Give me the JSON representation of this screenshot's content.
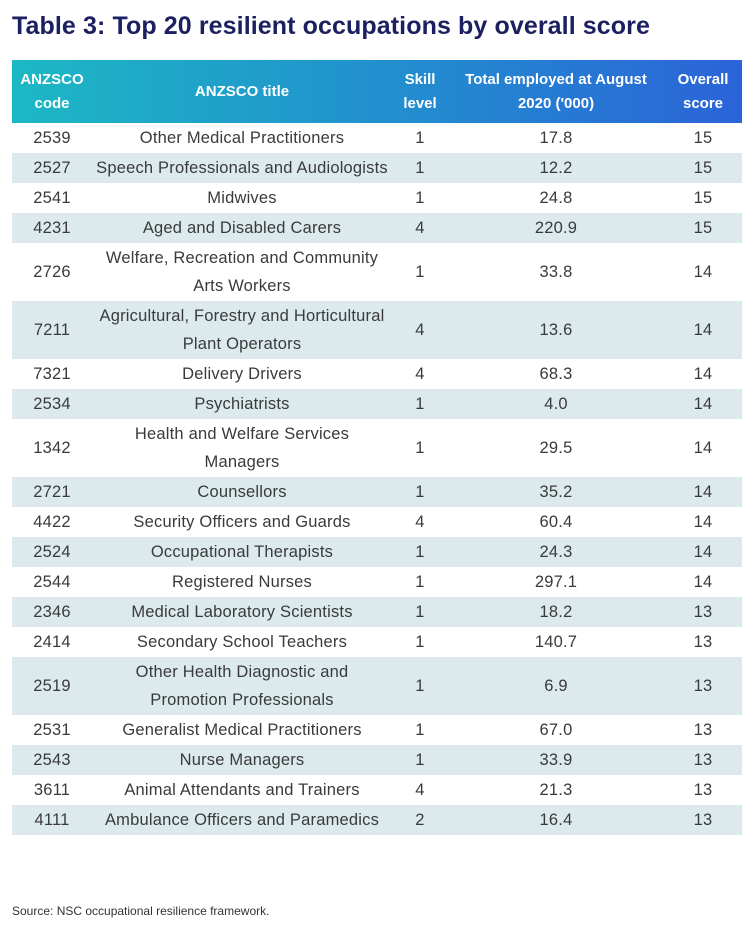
{
  "title": "Table 3: Top 20 resilient occupations by overall score",
  "table": {
    "headers": [
      "ANZSCO code",
      "ANZSCO title",
      "Skill level",
      "Total employed at August 2020 ('000)",
      "Overall score"
    ],
    "rows": [
      [
        "2539",
        "Other Medical Practitioners",
        "1",
        "17.8",
        "15"
      ],
      [
        "2527",
        "Speech Professionals and Audiologists",
        "1",
        "12.2",
        "15"
      ],
      [
        "2541",
        "Midwives",
        "1",
        "24.8",
        "15"
      ],
      [
        "4231",
        "Aged and Disabled Carers",
        "4",
        "220.9",
        "15"
      ],
      [
        "2726",
        "Welfare, Recreation and Community Arts Workers",
        "1",
        "33.8",
        "14"
      ],
      [
        "7211",
        "Agricultural, Forestry and Horticultural Plant Operators",
        "4",
        "13.6",
        "14"
      ],
      [
        "7321",
        "Delivery Drivers",
        "4",
        "68.3",
        "14"
      ],
      [
        "2534",
        "Psychiatrists",
        "1",
        "4.0",
        "14"
      ],
      [
        "1342",
        "Health and Welfare Services Managers",
        "1",
        "29.5",
        "14"
      ],
      [
        "2721",
        "Counsellors",
        "1",
        "35.2",
        "14"
      ],
      [
        "4422",
        "Security Officers and Guards",
        "4",
        "60.4",
        "14"
      ],
      [
        "2524",
        "Occupational Therapists",
        "1",
        "24.3",
        "14"
      ],
      [
        "2544",
        "Registered Nurses",
        "1",
        "297.1",
        "14"
      ],
      [
        "2346",
        "Medical Laboratory Scientists",
        "1",
        "18.2",
        "13"
      ],
      [
        "2414",
        "Secondary School Teachers",
        "1",
        "140.7",
        "13"
      ],
      [
        "2519",
        "Other Health Diagnostic and Promotion Professionals",
        "1",
        "6.9",
        "13"
      ],
      [
        "2531",
        "Generalist Medical Practitioners",
        "1",
        "67.0",
        "13"
      ],
      [
        "2543",
        "Nurse Managers",
        "1",
        "33.9",
        "13"
      ],
      [
        "3611",
        "Animal Attendants and Trainers",
        "4",
        "21.3",
        "13"
      ],
      [
        "4111",
        "Ambulance Officers and Paramedics",
        "2",
        "16.4",
        "13"
      ]
    ]
  },
  "source": "Source: NSC occupational resilience framework."
}
